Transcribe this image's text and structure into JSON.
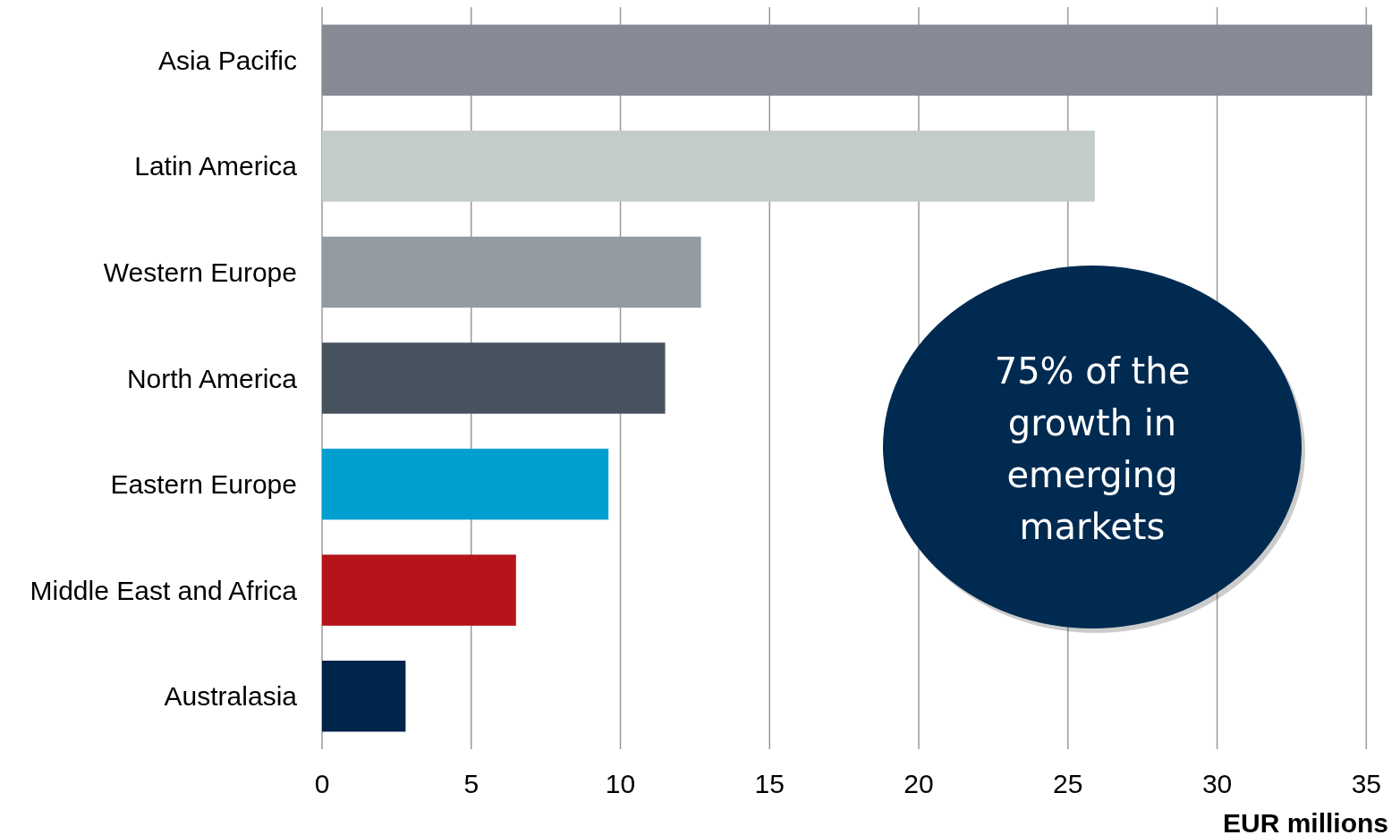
{
  "chart_data": {
    "type": "bar",
    "orientation": "horizontal",
    "xlabel": "EUR millions",
    "categories": [
      "Asia Pacific",
      "Latin America",
      "Western Europe",
      "North America",
      "Eastern Europe",
      "Middle East and Africa",
      "Australasia"
    ],
    "values": [
      35.2,
      25.9,
      12.7,
      11.5,
      9.6,
      6.5,
      2.8
    ],
    "colors": [
      "#868a94",
      "#c3cccb",
      "#939aa1",
      "#46525e",
      "#009fd1",
      "#b5141a",
      "#00244a"
    ],
    "xlim": [
      0,
      35.2
    ],
    "xticks": [
      0,
      5,
      10,
      15,
      20,
      25,
      30,
      35
    ],
    "grid": "x",
    "annotations": [
      "75% of the growth in emerging markets"
    ]
  }
}
